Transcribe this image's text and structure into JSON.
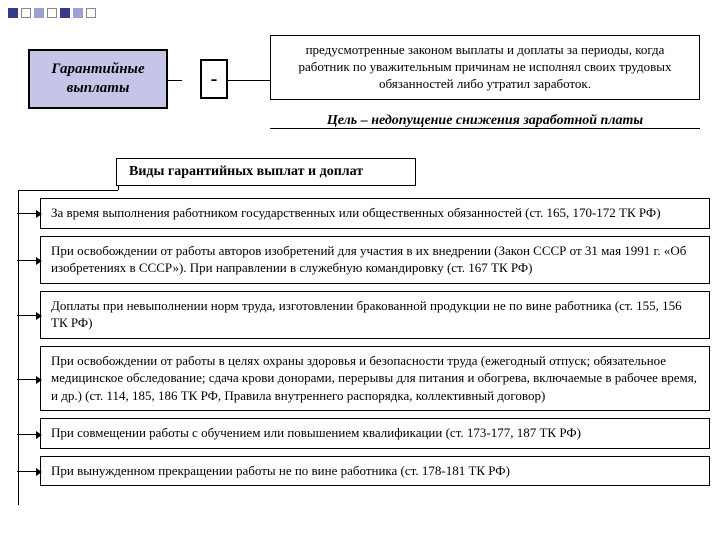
{
  "decor": {
    "dots": [
      {
        "bg": "#3a3a8a",
        "border": "#3a3a8a"
      },
      {
        "bg": "#ffffff",
        "border": "#888"
      },
      {
        "bg": "#a0a0d0",
        "border": "#a0a0d0"
      },
      {
        "bg": "#ffffff",
        "border": "#888"
      },
      {
        "bg": "#3a3a8a",
        "border": "#3a3a8a"
      },
      {
        "bg": "#a0a0d0",
        "border": "#a0a0d0"
      },
      {
        "bg": "#ffffff",
        "border": "#888"
      }
    ]
  },
  "diagram": {
    "title": "Гарантийные выплаты",
    "dash": "-",
    "definition": "предусмотренные законом выплаты и доплаты за периоды, когда работник по уважительным причинам не исполнял своих трудовых обязанностей либо утратил заработок.",
    "goal": "Цель – недопущение снижения заработной платы",
    "kinds_header": "Виды гарантийных выплат и доплат",
    "items": [
      "За время выполнения работником государственных или общественных обязанностей (ст. 165, 170-172 ТК РФ)",
      "При освобождении от работы авторов изобретений для участия в их внедрении (Закон СССР от 31 мая 1991 г. «Об изобретениях в СССР»). При направлении в служебную командировку (ст. 167 ТК РФ)",
      "Доплаты при невыполнении норм труда, изготовлении бракованной продукции не по вине работника (ст. 155, 156 ТК РФ)",
      "При освобождении от работы в целях охраны здоровья и безопасности труда (ежегодный отпуск; обязательное медицинское обследование; сдача крови донорами, перерывы для питания и обогрева, включаемые в рабочее время, и др.) (ст. 114, 185, 186 ТК РФ, Правила внутреннего распорядка, коллективный договор)",
      "При совмещении работы с обучением или повышением квалификации (ст. 173-177, 187 ТК РФ)",
      "При вынужденном прекращении работы не по вине работника (ст. 178-181 ТК РФ)"
    ]
  },
  "style": {
    "title_bg": "#c5c5e8",
    "border_color": "#000000",
    "body_fontsize": 13,
    "title_fontsize": 15,
    "kinds_fontsize": 14
  }
}
